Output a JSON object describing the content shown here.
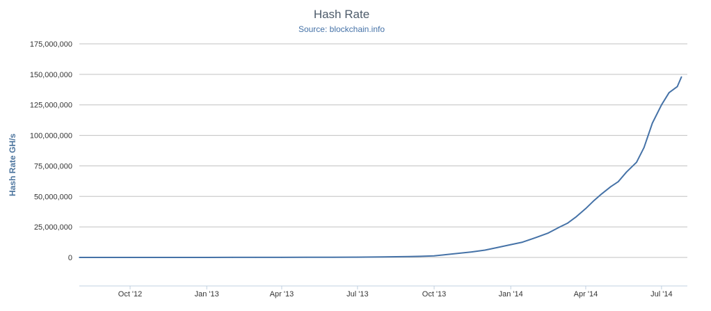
{
  "chart_data": {
    "type": "line",
    "title": "Hash Rate",
    "subtitle": "Source: blockchain.info",
    "xlabel": "",
    "ylabel": "Hash Rate GH/s",
    "ylim": [
      0,
      175000000
    ],
    "xlim": [
      "2012-08-01",
      "2014-08-01"
    ],
    "yticks": [
      0,
      25000000,
      50000000,
      75000000,
      100000000,
      125000000,
      150000000,
      175000000
    ],
    "ytick_labels": [
      "0",
      "25,000,000",
      "50,000,000",
      "75,000,000",
      "100,000,000",
      "125,000,000",
      "150,000,000",
      "175,000,000"
    ],
    "xticks": [
      "2012-10-01",
      "2013-01-01",
      "2013-04-01",
      "2013-07-01",
      "2013-10-01",
      "2014-01-01",
      "2014-04-01",
      "2014-07-01"
    ],
    "xtick_labels": [
      "Oct '12",
      "Jan '13",
      "Apr '13",
      "Jul '13",
      "Oct '13",
      "Jan '14",
      "Apr '14",
      "Jul '14"
    ],
    "grid": true,
    "legend": "none",
    "colors": {
      "line": "#4572a7",
      "grid": "#c0c0c0",
      "axis": "#c0d0e0"
    },
    "series": [
      {
        "x": [
          "2012-08-01",
          "2012-09-01",
          "2012-10-01",
          "2012-11-01",
          "2012-12-01",
          "2013-01-01",
          "2013-02-01",
          "2013-03-01",
          "2013-04-01",
          "2013-05-01",
          "2013-06-01",
          "2013-07-01",
          "2013-08-01",
          "2013-09-01",
          "2013-09-15",
          "2013-10-01",
          "2013-10-15",
          "2013-11-01",
          "2013-11-15",
          "2013-12-01",
          "2013-12-15",
          "2014-01-01",
          "2014-01-15",
          "2014-02-01",
          "2014-02-15",
          "2014-03-01",
          "2014-03-10",
          "2014-03-20",
          "2014-04-01",
          "2014-04-10",
          "2014-04-20",
          "2014-05-01",
          "2014-05-10",
          "2014-05-20",
          "2014-06-01",
          "2014-06-10",
          "2014-06-20",
          "2014-07-01",
          "2014-07-10",
          "2014-07-20",
          "2014-07-25"
        ],
        "values": [
          18000,
          20000,
          23000,
          25000,
          28000,
          25000,
          30000,
          40000,
          70000,
          90000,
          130000,
          230000,
          400000,
          700000,
          900000,
          1300000,
          2300000,
          3500000,
          4500000,
          6000000,
          8000000,
          10500000,
          12500000,
          16500000,
          20000000,
          25000000,
          28000000,
          33000000,
          40000000,
          46000000,
          52000000,
          58000000,
          62000000,
          70000000,
          78000000,
          90000000,
          110000000,
          125000000,
          135000000,
          140000000,
          148000000
        ]
      }
    ]
  }
}
